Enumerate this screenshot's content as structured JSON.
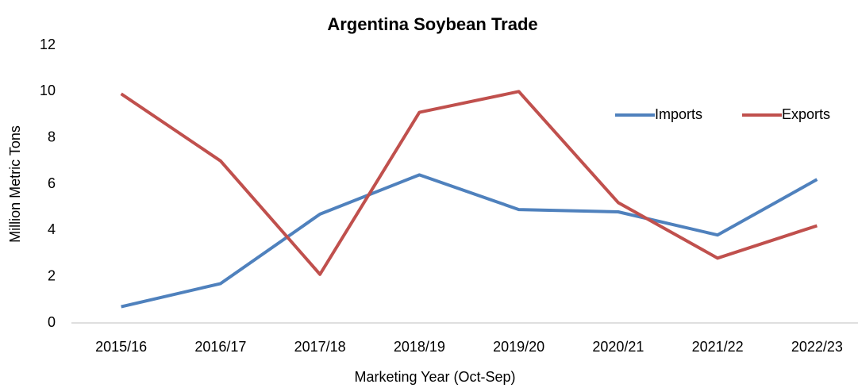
{
  "chart_data": {
    "type": "line",
    "title": "Argentina Soybean Trade",
    "x_label": "Marketing Year (Oct-Sep)",
    "y_label": "Million Metric Tons",
    "categories": [
      "2015/16",
      "2016/17",
      "2017/18",
      "2018/19",
      "2019/20",
      "2020/21",
      "2021/22",
      "2022/23"
    ],
    "series": [
      {
        "name": "Imports",
        "color": "#4f81bd",
        "values": [
          0.7,
          1.7,
          4.7,
          6.4,
          4.9,
          4.8,
          3.8,
          6.2
        ]
      },
      {
        "name": "Exports",
        "color": "#c0504d",
        "values": [
          9.9,
          7.0,
          2.1,
          9.1,
          10.0,
          5.2,
          2.8,
          4.2
        ]
      }
    ],
    "ylim": [
      0,
      12
    ],
    "yticks": [
      0,
      2,
      4,
      6,
      8,
      10,
      12
    ],
    "grid": false,
    "legend": "upper right"
  }
}
